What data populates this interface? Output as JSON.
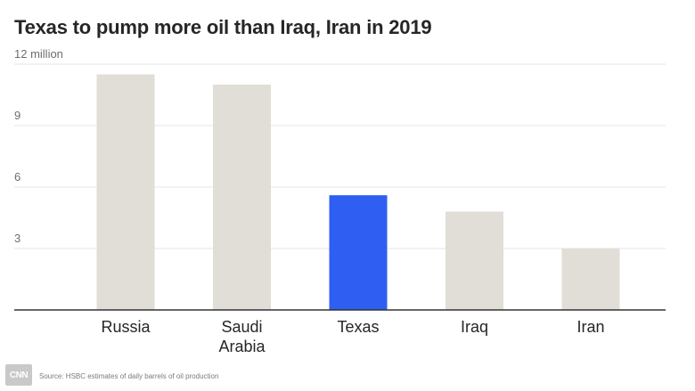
{
  "title": "Texas to pump more oil than Iraq, Iran in 2019",
  "source": "Source: HSBC estimates of daily barrels of oil production",
  "logo": "CNN",
  "colors": {
    "bar_default": "#e0ded6",
    "bar_highlight": "#2e5ff2",
    "grid": "#e6e6e6",
    "axis": "#333333",
    "tick_text": "#6e6e6e",
    "category_text": "#262626"
  },
  "chart_data": {
    "type": "bar",
    "categories": [
      [
        "Russia"
      ],
      [
        "Saudi",
        "Arabia"
      ],
      [
        "Texas"
      ],
      [
        "Iraq"
      ],
      [
        "Iran"
      ]
    ],
    "values": [
      11.5,
      11.0,
      5.6,
      4.8,
      3.0
    ],
    "highlight_index": 2,
    "ylim": [
      0,
      12
    ],
    "yticks": [
      3,
      6,
      9,
      12
    ],
    "ytick_labels": [
      "3",
      "6",
      "9",
      "12 million"
    ],
    "grid": true
  }
}
